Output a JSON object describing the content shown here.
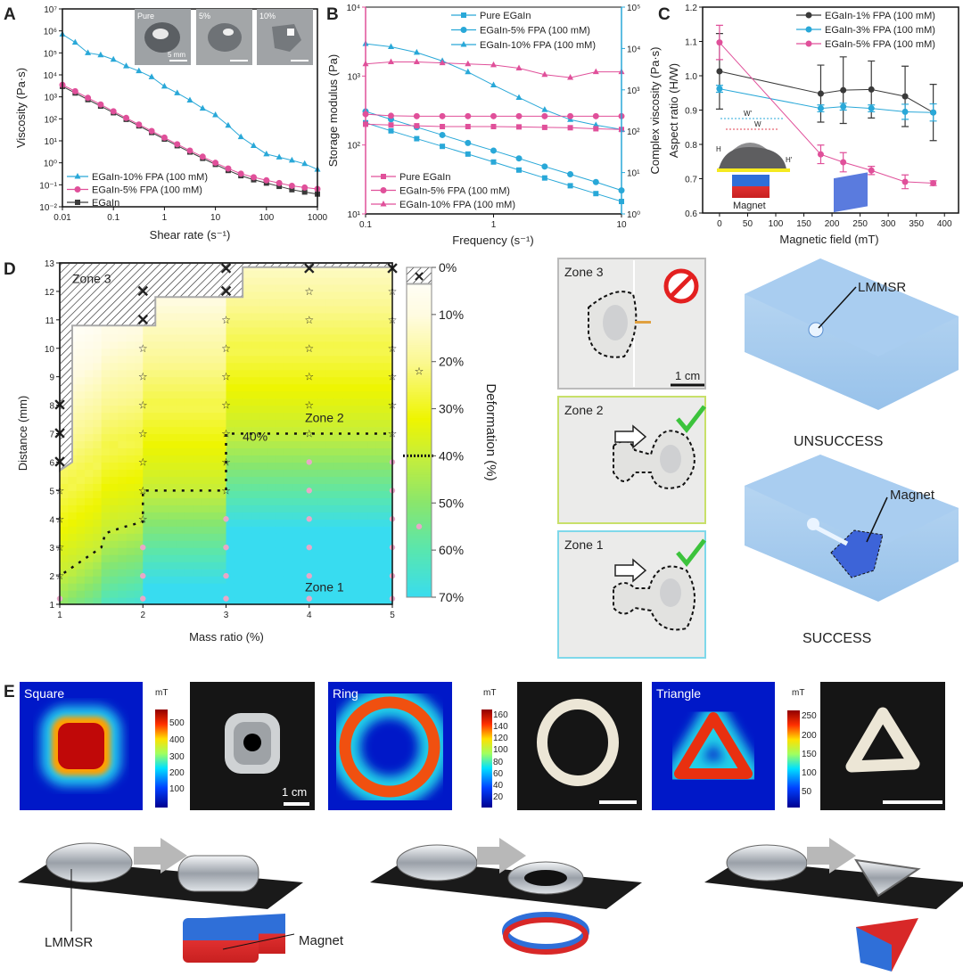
{
  "panel_labels": [
    "A",
    "B",
    "C",
    "D",
    "E"
  ],
  "panel_a": {
    "inset_labels": [
      "Pure",
      "5%",
      "10%"
    ],
    "inset_scale_bar": "5 mm"
  },
  "chart_data": [
    {
      "panel": "A",
      "type": "line",
      "xscale": "log",
      "yscale": "log",
      "xlim": [
        0.01,
        1000
      ],
      "ylim": [
        0.01,
        10000000
      ],
      "xlabel": "Shear rate (s⁻¹)",
      "ylabel": "Viscosity (Pa·s)",
      "xticks": [
        {
          "v": 0.01,
          "t": "0.01"
        },
        {
          "v": 0.1,
          "t": "0.1"
        },
        {
          "v": 1,
          "t": "1"
        },
        {
          "v": 10,
          "t": "10"
        },
        {
          "v": 100,
          "t": "100"
        },
        {
          "v": 1000,
          "t": "1000"
        }
      ],
      "yticks": [
        {
          "v": 0.01,
          "t": "10⁻²"
        },
        {
          "v": 0.1,
          "t": "10⁻¹"
        },
        {
          "v": 1,
          "t": "10⁰"
        },
        {
          "v": 10,
          "t": "10¹"
        },
        {
          "v": 100,
          "t": "10²"
        },
        {
          "v": 1000,
          "t": "10³"
        },
        {
          "v": 10000,
          "t": "10⁴"
        },
        {
          "v": 100000,
          "t": "10⁵"
        },
        {
          "v": 1000000,
          "t": "10⁶"
        },
        {
          "v": 10000000,
          "t": "10⁷"
        }
      ],
      "legend": "bottom-left",
      "x": [
        0.01,
        0.0178,
        0.0316,
        0.0562,
        0.1,
        0.178,
        0.316,
        0.562,
        1,
        1.78,
        3.16,
        5.62,
        10,
        17.8,
        31.6,
        56.2,
        100,
        178,
        316,
        562,
        1000
      ],
      "series": [
        {
          "name": "EGaIn-10% FPA (100 mM)",
          "color": "#29a8d8",
          "marker": "triangle",
          "values": [
            700000,
            300000,
            100000,
            80000,
            50000,
            25000,
            15000,
            8000,
            3000,
            1500,
            700,
            300,
            150,
            50,
            15,
            6,
            2.5,
            1.8,
            1.3,
            0.9,
            0.5
          ]
        },
        {
          "name": "EGaIn-5% FPA (100 mM)",
          "color": "#e0509a",
          "marker": "circle",
          "values": [
            3500,
            1800,
            900,
            450,
            220,
            110,
            55,
            28,
            14,
            7,
            3.6,
            1.9,
            1.0,
            0.55,
            0.32,
            0.22,
            0.16,
            0.12,
            0.09,
            0.075,
            0.065
          ]
        },
        {
          "name": "EGaIn",
          "color": "#3a3a3a",
          "marker": "square",
          "values": [
            3000,
            1500,
            750,
            380,
            190,
            95,
            48,
            24,
            12,
            6,
            3.1,
            1.6,
            0.85,
            0.45,
            0.26,
            0.17,
            0.12,
            0.085,
            0.06,
            0.047,
            0.038
          ]
        }
      ]
    },
    {
      "panel": "B",
      "type": "line",
      "xscale": "log",
      "yscale": "log",
      "xlim": [
        0.1,
        10
      ],
      "ylim_left": [
        10,
        10000
      ],
      "ylim_right": [
        1,
        100000
      ],
      "xlabel": "Frequency (s⁻¹)",
      "ylabel_left": "Storage modulus (Pa)",
      "ylabel_right": "Complex viscosity (Pa·s)",
      "xticks": [
        {
          "v": 0.1,
          "t": "0.1"
        },
        {
          "v": 1,
          "t": "1"
        },
        {
          "v": 10,
          "t": "10"
        }
      ],
      "yticks_left": [
        {
          "v": 10,
          "t": "10¹"
        },
        {
          "v": 100,
          "t": "10²"
        },
        {
          "v": 1000,
          "t": "10³"
        },
        {
          "v": 10000,
          "t": "10⁴"
        }
      ],
      "yticks_right": [
        {
          "v": 1,
          "t": "10⁰"
        },
        {
          "v": 10,
          "t": "10¹"
        },
        {
          "v": 100,
          "t": "10²"
        },
        {
          "v": 1000,
          "t": "10³"
        },
        {
          "v": 10000,
          "t": "10⁴"
        },
        {
          "v": 100000,
          "t": "10⁵"
        }
      ],
      "left_axis_color": "#e0509a",
      "right_axis_color": "#29a8d8",
      "x": [
        0.1,
        0.158,
        0.251,
        0.398,
        0.631,
        1,
        1.58,
        2.51,
        3.98,
        6.31,
        10
      ],
      "legend_right": "top-right",
      "legend_left": "bottom-left",
      "series": [
        {
          "name": "Pure EGaIn",
          "axis": "right",
          "color": "#29a8d8",
          "marker": "square",
          "values": [
            160,
            102,
            66,
            43,
            28,
            18,
            11.5,
            7.4,
            4.8,
            3.1,
            2.0
          ]
        },
        {
          "name": "EGaIn-5% FPA (100 mM)",
          "axis": "right",
          "color": "#29a8d8",
          "marker": "circle",
          "values": [
            300,
            194,
            125,
            81,
            52,
            34,
            22,
            14,
            9.1,
            5.9,
            3.7
          ]
        },
        {
          "name": "EGaIn-10% FPA (100 mM)",
          "axis": "right",
          "color": "#29a8d8",
          "marker": "triangle",
          "values": [
            13000,
            11000,
            8000,
            5000,
            2700,
            1300,
            650,
            330,
            190,
            140,
            110
          ]
        },
        {
          "name": "Pure EGaIn",
          "axis": "left",
          "color": "#e0509a",
          "marker": "square",
          "values": [
            200,
            195,
            190,
            185,
            185,
            185,
            183,
            180,
            178,
            172,
            168
          ]
        },
        {
          "name": "EGaIn-5% FPA (100 mM)",
          "axis": "left",
          "color": "#e0509a",
          "marker": "circle",
          "values": [
            280,
            265,
            262,
            262,
            262,
            262,
            262,
            262,
            262,
            262,
            262
          ]
        },
        {
          "name": "EGaIn-10% FPA (100 mM)",
          "axis": "left",
          "color": "#e0509a",
          "marker": "triangle",
          "values": [
            1500,
            1600,
            1600,
            1550,
            1500,
            1450,
            1300,
            1050,
            950,
            1150,
            1150
          ]
        }
      ]
    },
    {
      "panel": "C",
      "type": "line",
      "xlim": [
        -30,
        425
      ],
      "ylim": [
        0.6,
        1.2
      ],
      "xlabel": "Magnetic field (mT)",
      "ylabel": "Aspect ratio (H/W)",
      "xticks": [
        {
          "v": 0,
          "t": "0"
        },
        {
          "v": 50,
          "t": "50"
        },
        {
          "v": 100,
          "t": "100"
        },
        {
          "v": 150,
          "t": "150"
        },
        {
          "v": 200,
          "t": "200"
        },
        {
          "v": 250,
          "t": "250"
        },
        {
          "v": 300,
          "t": "300"
        },
        {
          "v": 350,
          "t": "350"
        },
        {
          "v": 400,
          "t": "400"
        }
      ],
      "yticks": [
        {
          "v": 0.6,
          "t": "0.6"
        },
        {
          "v": 0.7,
          "t": "0.7"
        },
        {
          "v": 0.8,
          "t": "0.8"
        },
        {
          "v": 0.9,
          "t": "0.9"
        },
        {
          "v": 1.0,
          "t": "1.0"
        },
        {
          "v": 1.1,
          "t": "1.1"
        },
        {
          "v": 1.2,
          "t": "1.2"
        }
      ],
      "legend": "top-right",
      "x": [
        0,
        180,
        220,
        270,
        330,
        380
      ],
      "series": [
        {
          "name": "EGaIn-1% FPA (100 mM)",
          "color": "#3a3a3a",
          "values": [
            1.013,
            0.948,
            0.958,
            0.96,
            0.94,
            0.893
          ],
          "errors": [
            0.11,
            0.083,
            0.097,
            0.083,
            0.088,
            0.082
          ]
        },
        {
          "name": "EGaIn-3% FPA (100 mM)",
          "color": "#29a8d8",
          "values": [
            0.962,
            0.905,
            0.91,
            0.905,
            0.895,
            0.893
          ],
          "errors": [
            0.01,
            0.01,
            0.01,
            0.01,
            0.022,
            0.025
          ]
        },
        {
          "name": "EGaIn-5% FPA (100 mM)",
          "color": "#e0509a",
          "values": [
            1.097,
            0.771,
            0.748,
            0.724,
            0.691,
            0.687
          ],
          "errors": [
            0.05,
            0.027,
            0.028,
            0.012,
            0.02,
            0.007
          ]
        }
      ],
      "inset": {
        "w_prime": "W'",
        "w": "W",
        "h": "H",
        "h_prime": "H'",
        "magnet": "Magnet"
      }
    },
    {
      "panel": "D",
      "type": "heatmap",
      "xlim": [
        1,
        5
      ],
      "ylim": [
        1,
        13
      ],
      "xlabel": "Mass ratio (%)",
      "ylabel": "Distance (mm)",
      "xticks": [
        {
          "v": 1,
          "t": "1"
        },
        {
          "v": 2,
          "t": "2"
        },
        {
          "v": 3,
          "t": "3"
        },
        {
          "v": 4,
          "t": "4"
        },
        {
          "v": 5,
          "t": "5"
        }
      ],
      "yticks": [
        {
          "v": 1,
          "t": "1"
        },
        {
          "v": 2,
          "t": "2"
        },
        {
          "v": 3,
          "t": "3"
        },
        {
          "v": 4,
          "t": "4"
        },
        {
          "v": 5,
          "t": "5"
        },
        {
          "v": 6,
          "t": "6"
        },
        {
          "v": 7,
          "t": "7"
        },
        {
          "v": 8,
          "t": "8"
        },
        {
          "v": 9,
          "t": "9"
        },
        {
          "v": 10,
          "t": "10"
        },
        {
          "v": 11,
          "t": "11"
        },
        {
          "v": 12,
          "t": "12"
        },
        {
          "v": 13,
          "t": "13"
        }
      ],
      "colorbar": {
        "label": "Deformation (%)",
        "ticks": [
          "0%",
          "10%",
          "20%",
          "30%",
          "40%",
          "50%",
          "60%",
          "70%"
        ],
        "range": [
          0,
          70
        ],
        "stops": [
          {
            "p": 0,
            "c": "#ffffff"
          },
          {
            "p": 10,
            "c": "#fffbe0"
          },
          {
            "p": 20,
            "c": "#fbf890"
          },
          {
            "p": 32,
            "c": "#eef500"
          },
          {
            "p": 40,
            "c": "#c6ee3a"
          },
          {
            "p": 50,
            "c": "#88e66e"
          },
          {
            "p": 60,
            "c": "#58e6b0"
          },
          {
            "p": 70,
            "c": "#38dcf0"
          }
        ]
      },
      "zone_labels": [
        "Zone 3",
        "Zone 2",
        "Zone 1"
      ],
      "contour_label": "40%",
      "contour_40": [
        [
          1.05,
          2.1
        ],
        [
          1.3,
          2.6
        ],
        [
          1.5,
          3.0
        ],
        [
          1.55,
          3.5
        ],
        [
          1.75,
          3.7
        ],
        [
          2.0,
          3.9
        ],
        [
          2.0,
          5.0
        ],
        [
          3.0,
          5.0
        ],
        [
          3.0,
          7.0
        ],
        [
          5.0,
          7.0
        ]
      ],
      "zone3_boundary": [
        [
          1,
          13
        ],
        [
          5,
          13
        ],
        [
          5,
          12.85
        ],
        [
          3.2,
          12.85
        ],
        [
          3.2,
          11.8
        ],
        [
          2.15,
          11.8
        ],
        [
          2.15,
          10.8
        ],
        [
          1.15,
          10.8
        ],
        [
          1.15,
          6.0
        ],
        [
          1,
          5.7
        ]
      ],
      "failures": [
        [
          1,
          6
        ],
        [
          1,
          7
        ],
        [
          1,
          8
        ],
        [
          2,
          11
        ],
        [
          2,
          12
        ],
        [
          3,
          12
        ],
        [
          3,
          12.8
        ],
        [
          4,
          12.8
        ],
        [
          5,
          12.8
        ]
      ],
      "zone2_points": [
        [
          1,
          2
        ],
        [
          1,
          3
        ],
        [
          1,
          4
        ],
        [
          1,
          5
        ],
        [
          2,
          4
        ],
        [
          2,
          5
        ],
        [
          2,
          6
        ],
        [
          2,
          7
        ],
        [
          2,
          8
        ],
        [
          2,
          9
        ],
        [
          2,
          10
        ],
        [
          3,
          5
        ],
        [
          3,
          6
        ],
        [
          3,
          7
        ],
        [
          3,
          8
        ],
        [
          3,
          9
        ],
        [
          3,
          10
        ],
        [
          3,
          11
        ],
        [
          4,
          7
        ],
        [
          4,
          8
        ],
        [
          4,
          9
        ],
        [
          4,
          10
        ],
        [
          4,
          11
        ],
        [
          4,
          12
        ],
        [
          5,
          7
        ],
        [
          5,
          8
        ],
        [
          5,
          9
        ],
        [
          5,
          10
        ],
        [
          5,
          11
        ],
        [
          5,
          12
        ]
      ],
      "zone1_points": [
        [
          1,
          1.2
        ],
        [
          2,
          1.2
        ],
        [
          2,
          2
        ],
        [
          2,
          3
        ],
        [
          3,
          1.2
        ],
        [
          3,
          2
        ],
        [
          3,
          3
        ],
        [
          3,
          4
        ],
        [
          4,
          1.2
        ],
        [
          4,
          2
        ],
        [
          4,
          3
        ],
        [
          4,
          4
        ],
        [
          4,
          5
        ],
        [
          4,
          6
        ],
        [
          5,
          1.2
        ],
        [
          5,
          2
        ],
        [
          5,
          3
        ],
        [
          5,
          4
        ],
        [
          5,
          5
        ],
        [
          5,
          6
        ]
      ]
    }
  ],
  "panel_d_photos": {
    "zones": [
      "Zone 3",
      "Zone 2",
      "Zone 1"
    ],
    "scale_bar": "1 cm",
    "render_labels": {
      "lmmsr": "LMMSR",
      "unsuccess": "UNSUCCESS",
      "magnet": "Magnet",
      "success": "SUCCESS"
    }
  },
  "panel_e": {
    "unit": "mT",
    "shapes": [
      {
        "name": "Square",
        "ticks": [
          "500",
          "400",
          "300",
          "200",
          "100"
        ]
      },
      {
        "name": "Ring",
        "ticks": [
          "160",
          "140",
          "120",
          "100",
          "80",
          "60",
          "40",
          "20"
        ]
      },
      {
        "name": "Triangle",
        "ticks": [
          "250",
          "200",
          "150",
          "100",
          "50"
        ]
      }
    ],
    "scale_bar": "1 cm",
    "bottom_labels": {
      "lmmsr": "LMMSR",
      "magnet": "Magnet"
    }
  }
}
